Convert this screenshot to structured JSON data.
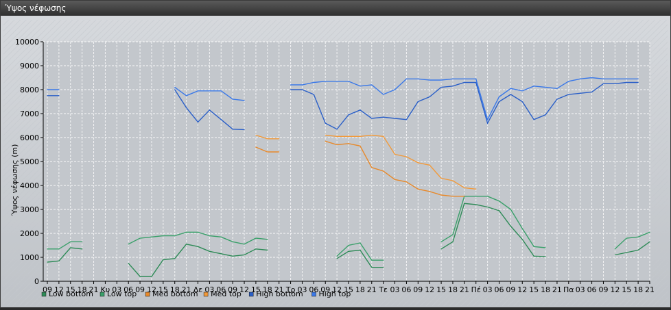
{
  "window": {
    "title": "Ύψος νέφωσης"
  },
  "chart_data": {
    "type": "line",
    "title": "",
    "ylabel": "Ύψος νέφωσης (m)",
    "xlabel": "",
    "ylim": [
      0,
      10000
    ],
    "yticks": [
      0,
      1000,
      2000,
      3000,
      4000,
      5000,
      6000,
      7000,
      8000,
      9000,
      10000
    ],
    "grid": true,
    "legend_position": "bottom-left",
    "categories": [
      "09",
      "12",
      "15",
      "18",
      "21",
      "Κυ",
      "03",
      "06",
      "09",
      "12",
      "15",
      "18",
      "21",
      "Δε",
      "03",
      "06",
      "09",
      "12",
      "15",
      "18",
      "21",
      "Τρ",
      "03",
      "06",
      "09",
      "12",
      "15",
      "18",
      "21",
      "Τε",
      "03",
      "06",
      "09",
      "12",
      "15",
      "18",
      "21",
      "Πέ",
      "03",
      "06",
      "09",
      "12",
      "15",
      "18",
      "21",
      "Πα",
      "03",
      "06",
      "09",
      "12",
      "15",
      "18",
      "21"
    ],
    "series": [
      {
        "name": "Low bottom",
        "color": "#2e8b57",
        "values": [
          800,
          850,
          1400,
          1350,
          null,
          null,
          null,
          750,
          200,
          200,
          900,
          950,
          1550,
          1450,
          1250,
          1150,
          1050,
          1100,
          1350,
          1300,
          null,
          null,
          null,
          null,
          null,
          950,
          1250,
          1300,
          580,
          580,
          null,
          null,
          null,
          null,
          1350,
          1650,
          3250,
          3200,
          3100,
          2950,
          2300,
          1750,
          1050,
          1030,
          null,
          null,
          null,
          null,
          null,
          1100,
          1200,
          1300,
          1650
        ]
      },
      {
        "name": "Low top",
        "color": "#3aa06a",
        "values": [
          1350,
          1350,
          1650,
          1650,
          null,
          null,
          null,
          1550,
          1800,
          1850,
          1900,
          1900,
          2050,
          2050,
          1900,
          1850,
          1650,
          1550,
          1800,
          1750,
          null,
          null,
          null,
          null,
          null,
          1050,
          1500,
          1600,
          880,
          880,
          null,
          null,
          null,
          null,
          1650,
          1950,
          3550,
          3550,
          3550,
          3350,
          3000,
          2200,
          1450,
          1400,
          null,
          null,
          null,
          null,
          null,
          1350,
          1800,
          1850,
          2050
        ]
      },
      {
        "name": "Med bottom",
        "color": "#e8892a",
        "values": [
          null,
          null,
          null,
          null,
          null,
          null,
          null,
          null,
          null,
          null,
          null,
          null,
          null,
          null,
          null,
          null,
          null,
          null,
          5600,
          5400,
          5400,
          null,
          null,
          null,
          5850,
          5700,
          5750,
          5650,
          4750,
          4600,
          4250,
          4150,
          3850,
          3750,
          3600,
          3550,
          3550,
          null,
          null,
          null,
          null,
          null,
          null,
          null,
          null,
          null,
          null,
          null,
          null,
          null,
          null,
          null,
          null
        ]
      },
      {
        "name": "Med top",
        "color": "#f29a3a",
        "values": [
          null,
          null,
          null,
          null,
          null,
          null,
          null,
          null,
          null,
          null,
          null,
          null,
          null,
          null,
          null,
          null,
          null,
          null,
          6100,
          5950,
          5950,
          null,
          null,
          null,
          6100,
          6050,
          6050,
          6050,
          6100,
          6050,
          5300,
          5200,
          4950,
          4850,
          4300,
          4200,
          3900,
          3850,
          null,
          null,
          null,
          null,
          null,
          null,
          null,
          null,
          null,
          null,
          null,
          null,
          null,
          null,
          null
        ]
      },
      {
        "name": "High bottom",
        "color": "#2a5fc8",
        "values": [
          7750,
          7750,
          null,
          null,
          null,
          null,
          null,
          null,
          null,
          null,
          null,
          8000,
          7250,
          6650,
          7150,
          6750,
          6350,
          6330,
          null,
          null,
          null,
          8000,
          8000,
          7800,
          6600,
          6350,
          6950,
          7150,
          6800,
          6850,
          6800,
          6750,
          7500,
          7700,
          8100,
          8150,
          8300,
          8300,
          6600,
          7500,
          7800,
          7500,
          6750,
          6950,
          7600,
          7800,
          7850,
          7900,
          8250,
          8250,
          8300,
          8300,
          null
        ]
      },
      {
        "name": "High top",
        "color": "#3a78e8",
        "values": [
          8000,
          8000,
          null,
          null,
          null,
          null,
          null,
          null,
          null,
          null,
          null,
          8100,
          7750,
          7950,
          7950,
          7950,
          7600,
          7550,
          null,
          null,
          null,
          8200,
          8200,
          8300,
          8350,
          8350,
          8350,
          8150,
          8200,
          7800,
          8000,
          8450,
          8450,
          8400,
          8400,
          8450,
          8450,
          8450,
          6750,
          7700,
          8050,
          7950,
          8150,
          8100,
          8050,
          8350,
          8450,
          8500,
          8450,
          8450,
          8450,
          8450,
          null
        ]
      }
    ]
  }
}
